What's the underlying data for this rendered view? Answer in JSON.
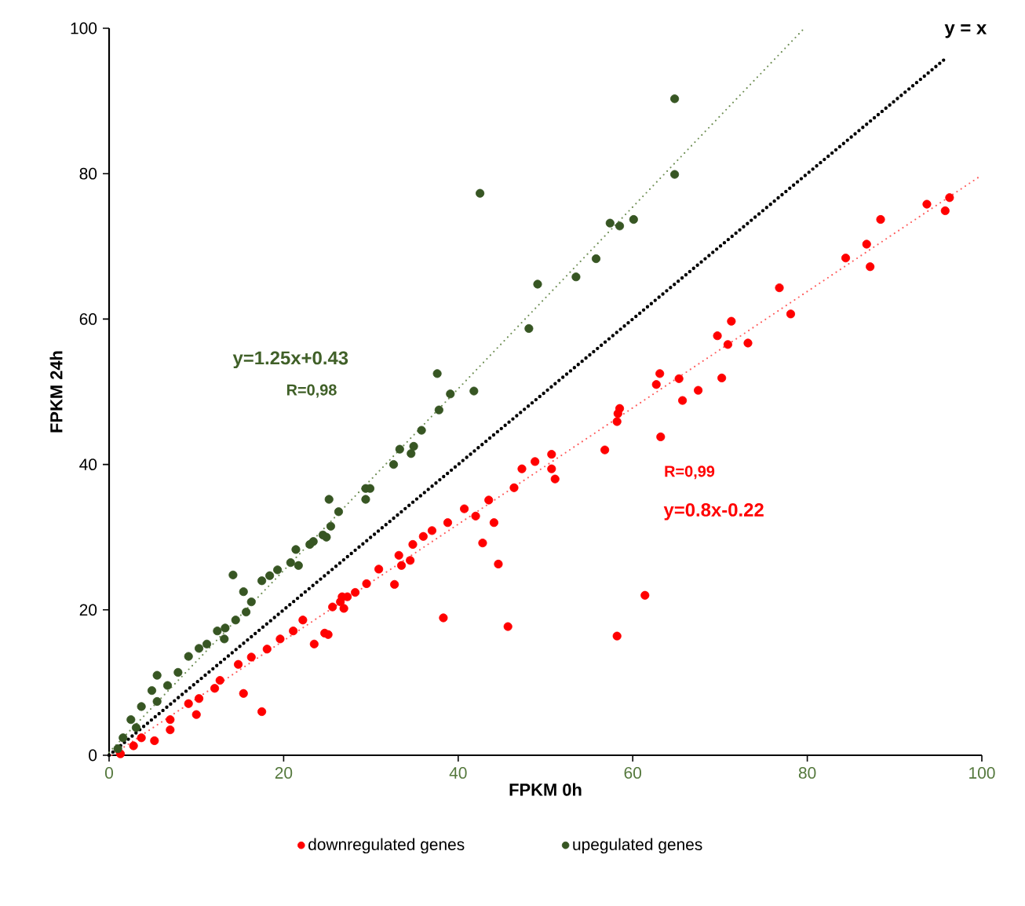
{
  "chart_data": {
    "type": "scatter",
    "xlabel": "FPKM 0h",
    "ylabel": "FPKM 24h",
    "xlim": [
      0,
      100
    ],
    "ylim": [
      0,
      100
    ],
    "xticks": [
      0,
      20,
      40,
      60,
      80,
      100
    ],
    "yticks": [
      0,
      20,
      40,
      60,
      80,
      100
    ],
    "grid": false,
    "legend": "bottom",
    "annotations": [
      "y = x",
      "y=1.25x+0.43",
      "R=0,98",
      "R=0,99",
      "y=0.8x-0.22"
    ],
    "series": [
      {
        "name": "downregulated genes",
        "color": "#ff0000",
        "marker": "circle",
        "x": [
          96.3,
          93.7,
          95.8,
          88.4,
          86.8,
          84.4,
          87.2,
          76.8,
          78.1,
          71.3,
          69.7,
          70.9,
          73.2,
          63.1,
          62.7,
          65.3,
          70.2,
          67.5,
          65.7,
          58.5,
          58.3,
          58.2,
          63.2,
          56.8,
          50.7,
          48.8,
          47.3,
          50.7,
          51.1,
          46.4,
          43.5,
          40.7,
          44.1,
          42.0,
          38.8,
          42.8,
          44.6,
          37.0,
          36.0,
          34.8,
          33.2,
          34.5,
          33.5,
          30.9,
          32.7,
          29.5,
          28.2,
          26.7,
          26.9,
          25.6,
          25.1,
          23.5,
          38.3,
          45.7,
          58.2,
          61.4,
          27.3,
          26.5,
          24.7,
          22.2,
          21.1,
          19.6,
          18.1,
          16.3,
          14.8,
          15.4,
          17.5,
          12.7,
          12.1,
          10.3,
          10.0,
          9.1,
          7.0,
          7.0,
          5.2,
          3.7,
          2.8,
          1.3
        ],
        "values": [
          76.7,
          75.8,
          74.9,
          73.7,
          70.3,
          68.4,
          67.2,
          64.3,
          60.7,
          59.7,
          57.7,
          56.5,
          56.7,
          52.5,
          51.0,
          51.8,
          51.9,
          50.2,
          48.8,
          47.7,
          47.0,
          45.9,
          43.8,
          42.0,
          41.4,
          40.4,
          39.4,
          39.4,
          38.0,
          36.8,
          35.1,
          33.9,
          32.0,
          32.9,
          32.0,
          29.2,
          26.3,
          30.9,
          30.1,
          29.0,
          27.5,
          26.8,
          26.1,
          25.6,
          23.5,
          23.6,
          22.4,
          21.8,
          20.2,
          20.4,
          16.6,
          15.3,
          18.9,
          17.7,
          16.4,
          22.0,
          21.8,
          21.1,
          16.8,
          18.6,
          17.1,
          16.0,
          14.6,
          13.5,
          12.5,
          8.5,
          6.0,
          10.3,
          9.2,
          7.8,
          5.6,
          7.1,
          4.9,
          3.5,
          2.0,
          2.4,
          1.3,
          0.2
        ]
      },
      {
        "name": "upegulated genes",
        "color": "#375623",
        "marker": "circle",
        "x": [
          64.8,
          64.8,
          57.4,
          58.5,
          60.1,
          55.8,
          53.5,
          49.1,
          48.1,
          42.5,
          37.6,
          41.8,
          39.1,
          37.8,
          36.0,
          35.8,
          33.3,
          34.9,
          34.6,
          32.6,
          29.4,
          29.9,
          29.4,
          25.2,
          26.3,
          25.4,
          24.9,
          23.4,
          24.5,
          23.0,
          21.4,
          20.8,
          21.7,
          19.3,
          18.4,
          17.5,
          14.2,
          15.4,
          16.3,
          15.7,
          14.5,
          13.3,
          12.4,
          13.2,
          11.2,
          10.3,
          9.1,
          7.9,
          5.5,
          6.7,
          4.9,
          5.5,
          3.7,
          2.5,
          3.1,
          1.6,
          1.0
        ],
        "values": [
          90.3,
          79.9,
          73.2,
          72.8,
          73.7,
          68.3,
          65.8,
          64.8,
          58.7,
          77.3,
          52.5,
          50.1,
          49.7,
          47.5,
          null,
          44.7,
          42.1,
          42.5,
          41.5,
          40.0,
          36.7,
          36.7,
          35.2,
          35.2,
          33.5,
          31.5,
          30.0,
          29.4,
          30.3,
          29.0,
          28.3,
          26.5,
          26.1,
          25.5,
          24.7,
          24.0,
          24.8,
          22.5,
          21.1,
          19.7,
          18.6,
          17.5,
          17.1,
          16.0,
          15.3,
          14.7,
          13.6,
          11.4,
          11.0,
          9.6,
          8.9,
          7.4,
          6.7,
          4.9,
          3.8,
          2.4,
          0.9
        ]
      },
      {
        "type": "line",
        "color": "#ff5b5b",
        "marker": "none",
        "line_style": "dotted",
        "x": [
          0.3,
          100
        ],
        "values": [
          0,
          79.8
        ]
      },
      {
        "type": "line",
        "color": "#6f8f55",
        "marker": "none",
        "line_style": "dotted",
        "x": [
          0,
          79.5
        ],
        "values": [
          0.4,
          99.8
        ]
      },
      {
        "type": "line",
        "color": "#000000",
        "marker": "none",
        "line_style": "dotted",
        "x": [
          0,
          96
        ],
        "values": [
          0,
          96
        ]
      }
    ]
  }
}
